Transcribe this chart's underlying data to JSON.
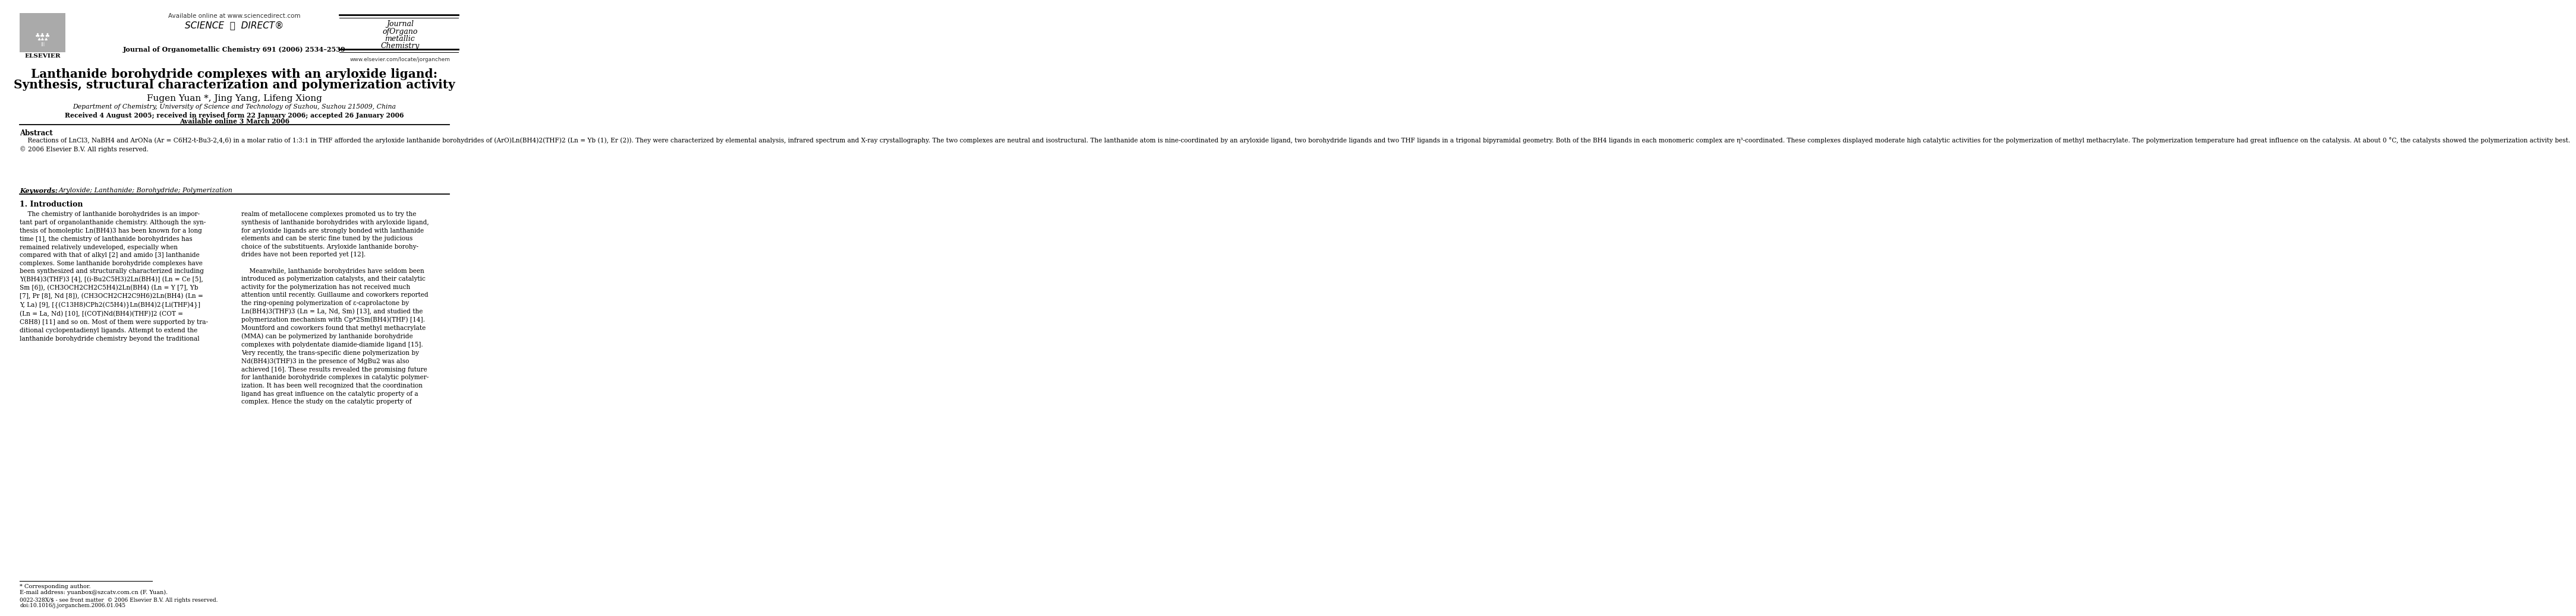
{
  "bg_color": "#ffffff",
  "page_width": 9.92,
  "page_height": 13.23,
  "header": {
    "available_online": "Available online at www.sciencedirect.com",
    "sciencedirect": "SCIENCE  ⓓ  DIRECT®",
    "elsevier_label": "ELSEVIER",
    "journal_name_line1": "Journal",
    "journal_name_line2": "ofOrgano",
    "journal_name_line3": "metallic",
    "journal_name_line4": "Chemistry",
    "journal_ref": "Journal of Organometallic Chemistry 691 (2006) 2534–2539",
    "website": "www.elsevier.com/locate/jorganchem"
  },
  "title": {
    "line1": "Lanthanide borohydride complexes with an aryloxide ligand:",
    "line2": "Synthesis, structural characterization and polymerization activity"
  },
  "authors": "Fugen Yuan *, Jing Yang, Lifeng Xiong",
  "affiliation": "Department of Chemistry, University of Science and Technology of Suzhou, Suzhou 215009, China",
  "dates": "Received 4 August 2005; received in revised form 22 January 2006; accepted 26 January 2006",
  "available": "Available online 3 March 2006",
  "abstract_heading": "Abstract",
  "abstract_text": "    Reactions of LnCl3, NaBH4 and ArONa (Ar = C6H2-t-Bu3-2,4,6) in a molar ratio of 1:3:1 in THF afforded the aryloxide lanthanide borohydrides of (ArO)Ln(BH4)2(THF)2 (Ln = Yb (1), Er (2)). They were characterized by elemental analysis, infrared spectrum and X-ray crystallography. The two complexes are neutral and isostructural. The lanthanide atom is nine-coordinated by an aryloxide ligand, two borohydride ligands and two THF ligands in a trigonal bipyramidal geometry. Both of the BH4 ligands in each monomeric complex are η³-coordinated. These complexes displayed moderate high catalytic activities for the polymerization of methyl methacrylate. The polymerization temperature had great influence on the catalysis. At about 0 °C, the catalysts showed the polymerization activity best.\n© 2006 Elsevier B.V. All rights reserved.",
  "keywords_label": "Keywords:  ",
  "keywords": "Aryloxide; Lanthanide; Borohydride; Polymerization",
  "section1_heading": "1. Introduction",
  "intro_col1_lines": [
    "    The chemistry of lanthanide borohydrides is an impor-",
    "tant part of organolanthanide chemistry. Although the syn-",
    "thesis of homoleptic Ln(BH4)3 has been known for a long",
    "time [1], the chemistry of lanthanide borohydrides has",
    "remained relatively undeveloped, especially when",
    "compared with that of alkyl [2] and amido [3] lanthanide",
    "complexes. Some lanthanide borohydride complexes have",
    "been synthesized and structurally characterized including",
    "Y(BH4)3(THF)3 [4], [(i-Bu2C5H3)2Ln(BH4)] (Ln = Ce [5],",
    "Sm [6]), (CH3OCH2CH2C5H4)2Ln(BH4) (Ln = Y [7], Yb",
    "[7], Pr [8], Nd [8]), (CH3OCH2CH2C9H6)2Ln(BH4) (Ln =",
    "Y, La) [9], [{(C13H8)CPh2(C5H4)}Ln(BH4)2{Li(THF)4}]",
    "(Ln = La, Nd) [10], [(COT)Nd(BH4)(THF)]2 (COT =",
    "C8H8) [11] and so on. Most of them were supported by tra-",
    "ditional cyclopentadienyl ligands. Attempt to extend the",
    "lanthanide borohydride chemistry beyond the traditional"
  ],
  "intro_col2_lines": [
    "realm of metallocene complexes promoted us to try the",
    "synthesis of lanthanide borohydrides with aryloxide ligand,",
    "for aryloxide ligands are strongly bonded with lanthanide",
    "elements and can be steric fine tuned by the judicious",
    "choice of the substituents. Aryloxide lanthanide borohy-",
    "drides have not been reported yet [12].",
    "",
    "    Meanwhile, lanthanide borohydrides have seldom been",
    "introduced as polymerization catalysts, and their catalytic",
    "activity for the polymerization has not received much",
    "attention until recently. Guillaume and coworkers reported",
    "the ring-opening polymerization of ε-caprolactone by",
    "Ln(BH4)3(THF)3 (Ln = La, Nd, Sm) [13], and studied the",
    "polymerization mechanism with Cp*2Sm(BH4)(THF) [14].",
    "Mountford and coworkers found that methyl methacrylate",
    "(MMA) can be polymerized by lanthanide borohydride",
    "complexes with polydentate diamide-diamide ligand [15].",
    "Very recently, the trans-specific diene polymerization by",
    "Nd(BH4)3(THF)3 in the presence of MgBu2 was also",
    "achieved [16]. These results revealed the promising future",
    "for lanthanide borohydride complexes in catalytic polymer-",
    "ization. It has been well recognized that the coordination",
    "ligand has great influence on the catalytic property of a",
    "complex. Hence the study on the catalytic property of"
  ],
  "footnote_star": "* Corresponding author.",
  "footnote_email": "E-mail address: yuanbox@szcatv.com.cn (F. Yuan).",
  "footer_issn": "0022-328X/$ - see front matter  © 2006 Elsevier B.V. All rights reserved.",
  "footer_doi": "doi:10.1016/j.jorganchem.2006.01.045"
}
